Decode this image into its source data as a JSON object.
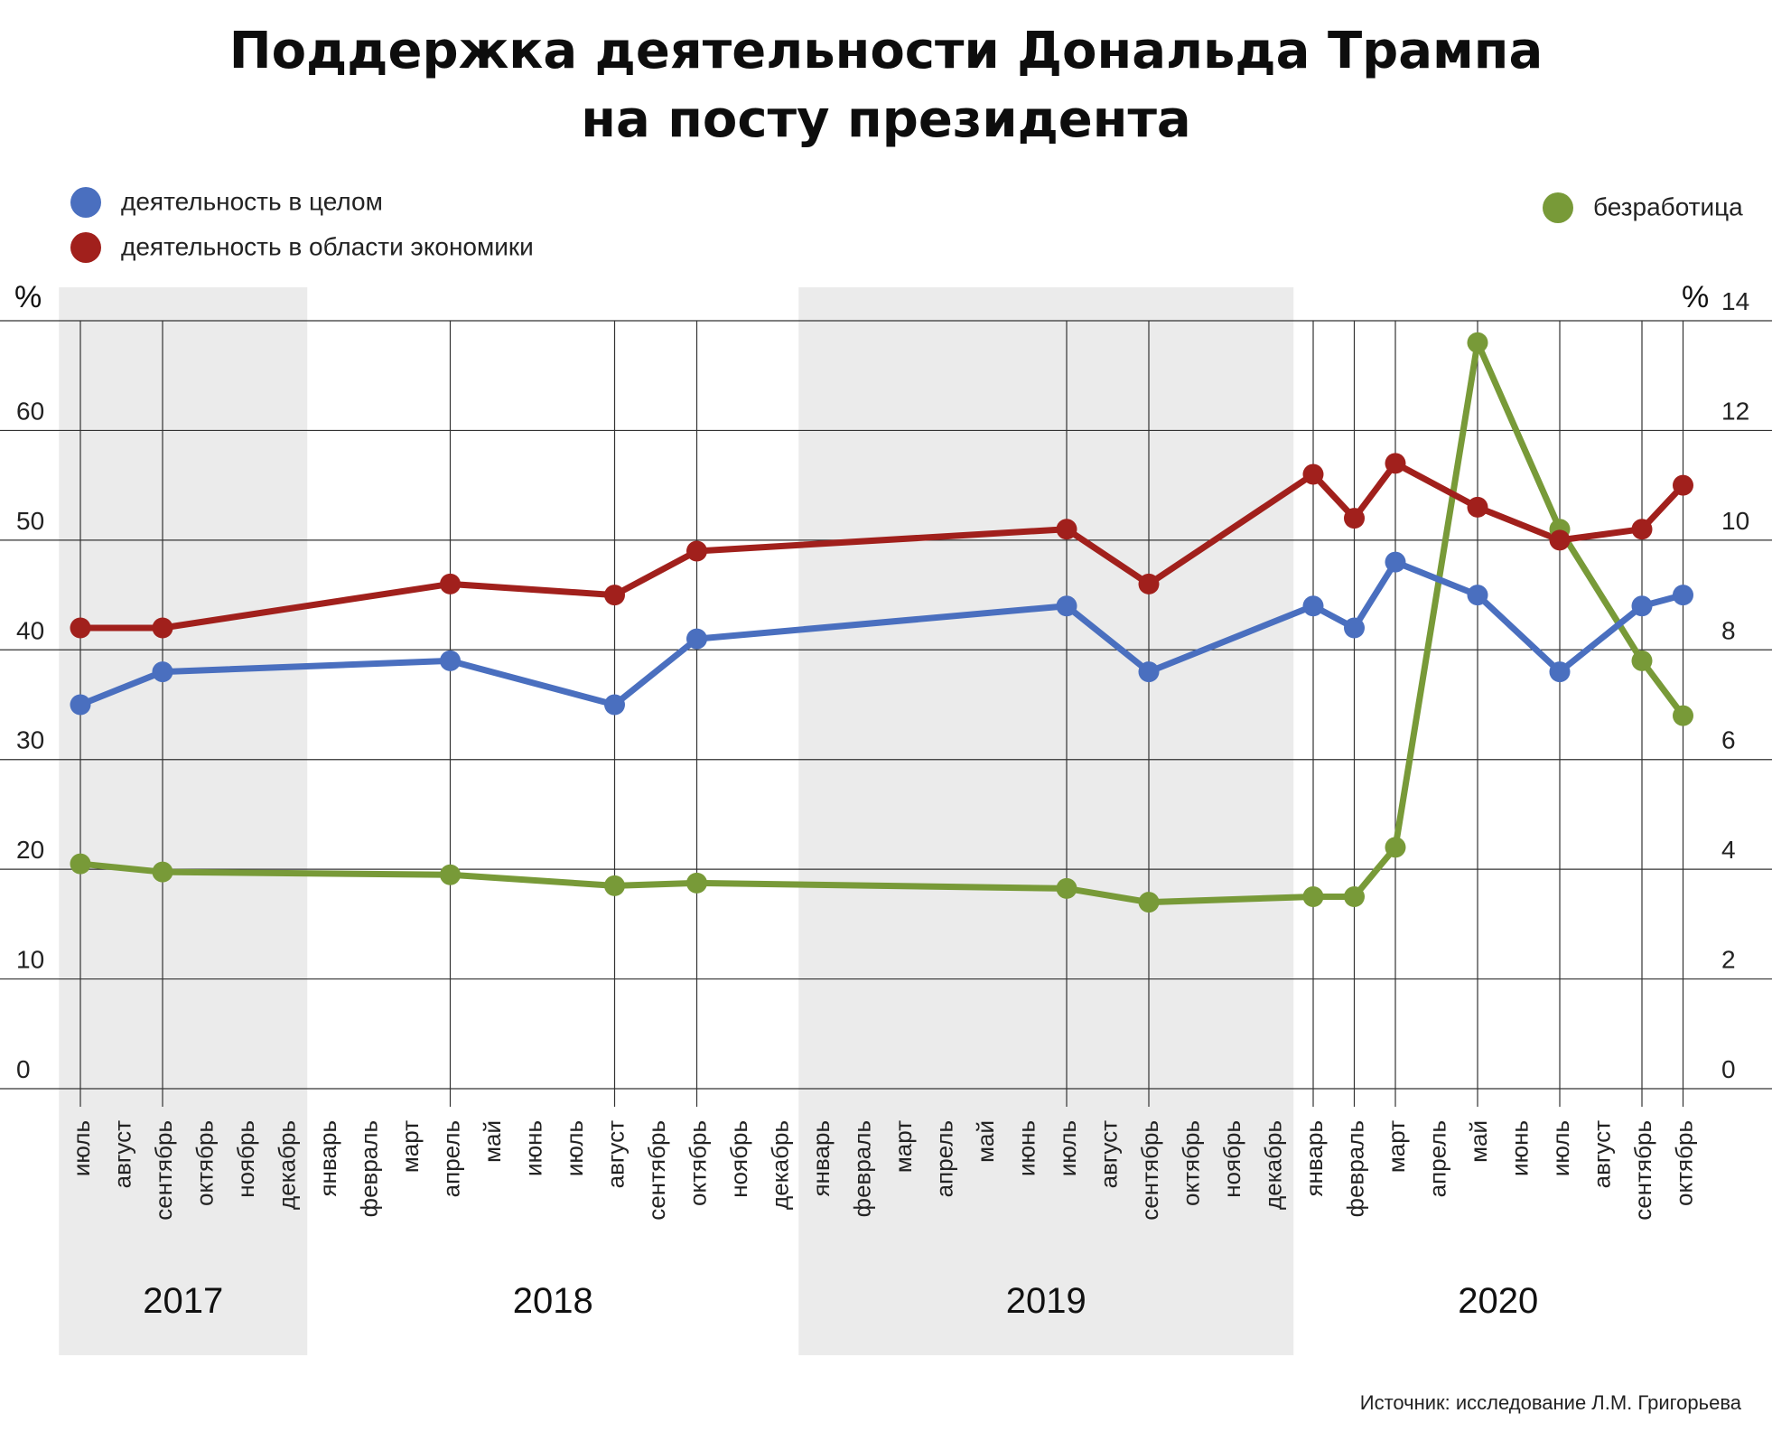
{
  "title_line1": "Поддержка деятельности Дональда Трампа",
  "title_line2": "на посту президента",
  "legend": {
    "overall": "деятельность в целом",
    "economy": "деятельность в области экономики",
    "unemployment": "безработица"
  },
  "source": "Источник: исследование Л.М. Григорьева",
  "colors": {
    "overall": "#4a6fbf",
    "economy": "#a1201c",
    "unemployment": "#789a38",
    "shade": "#ebebeb"
  },
  "chart_data": {
    "type": "line",
    "months": [
      "июль",
      "август",
      "сентябрь",
      "октябрь",
      "ноябрь",
      "декабрь",
      "январь",
      "февраль",
      "март",
      "апрель",
      "май",
      "июнь",
      "июль",
      "август",
      "сентябрь",
      "октябрь",
      "ноябрь",
      "декабрь",
      "январь",
      "февраль",
      "март",
      "апрель",
      "май",
      "июнь",
      "июль",
      "август",
      "сентябрь",
      "октябрь",
      "ноябрь",
      "декабрь",
      "январь",
      "февраль",
      "март",
      "апрель",
      "май",
      "июнь",
      "июль",
      "август",
      "сентябрь",
      "октябрь"
    ],
    "years": [
      {
        "label": "2017",
        "start": 0,
        "end": 5,
        "shaded": true
      },
      {
        "label": "2018",
        "start": 6,
        "end": 17,
        "shaded": false
      },
      {
        "label": "2019",
        "start": 18,
        "end": 29,
        "shaded": true
      },
      {
        "label": "2020",
        "start": 30,
        "end": 39,
        "shaded": false
      }
    ],
    "y_left": {
      "label": "%",
      "min": 0,
      "max": 70,
      "ticks": [
        0,
        10,
        20,
        30,
        40,
        50,
        60
      ]
    },
    "y_right": {
      "label": "%",
      "min": 0,
      "max": 14,
      "ticks": [
        0,
        2,
        4,
        6,
        8,
        10,
        12,
        14
      ]
    },
    "series": [
      {
        "name": "деятельность в целом",
        "axis": "left",
        "color": "#4a6fbf",
        "points": [
          [
            0,
            35
          ],
          [
            2,
            38
          ],
          [
            9,
            39
          ],
          [
            13,
            35
          ],
          [
            15,
            41
          ],
          [
            24,
            44
          ],
          [
            26,
            38
          ],
          [
            30,
            44
          ],
          [
            31,
            42
          ],
          [
            32,
            48
          ],
          [
            34,
            45
          ],
          [
            36,
            38
          ],
          [
            38,
            44
          ],
          [
            39,
            45
          ]
        ]
      },
      {
        "name": "деятельность в области экономики",
        "axis": "left",
        "color": "#a1201c",
        "points": [
          [
            0,
            42
          ],
          [
            2,
            42
          ],
          [
            9,
            46
          ],
          [
            13,
            45
          ],
          [
            15,
            49
          ],
          [
            24,
            51
          ],
          [
            26,
            46
          ],
          [
            30,
            56
          ],
          [
            31,
            52
          ],
          [
            32,
            57
          ],
          [
            34,
            53
          ],
          [
            36,
            50
          ],
          [
            38,
            51
          ],
          [
            39,
            55
          ]
        ]
      },
      {
        "name": "безработица",
        "axis": "right",
        "color": "#789a38",
        "points": [
          [
            0,
            4.1
          ],
          [
            2,
            3.95
          ],
          [
            9,
            3.9
          ],
          [
            13,
            3.7
          ],
          [
            15,
            3.75
          ],
          [
            24,
            3.65
          ],
          [
            26,
            3.4
          ],
          [
            30,
            3.5
          ],
          [
            31,
            3.5
          ],
          [
            32,
            4.4
          ],
          [
            34,
            13.6
          ],
          [
            36,
            10.2
          ],
          [
            38,
            7.8
          ],
          [
            39,
            6.8
          ]
        ]
      }
    ]
  }
}
